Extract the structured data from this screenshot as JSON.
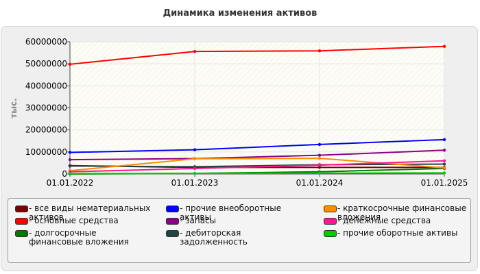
{
  "chart_data": {
    "type": "line",
    "title": "Динамика изменения активов",
    "ylabel": "тыс.",
    "categories": [
      "01.01.2022",
      "01.01.2023",
      "01.01.2024",
      "01.01.2025"
    ],
    "ylim": [
      0,
      60000000
    ],
    "yticks": [
      "0",
      "10000000",
      "20000000",
      "30000000",
      "40000000",
      "50000000",
      "60000000"
    ],
    "grid": true,
    "legend_position": "bottom",
    "series": [
      {
        "name": "- все виды нематериальных активов",
        "color": "#7a0000",
        "values": [
          3800000,
          3000000,
          3000000,
          3000000
        ]
      },
      {
        "name": "- основные средства",
        "color": "#ff0000",
        "values": [
          49800000,
          55600000,
          55900000,
          57900000
        ]
      },
      {
        "name": "- долгосрочные финансовые вложения",
        "color": "#007a00",
        "values": [
          0,
          300000,
          1000000,
          2500000
        ]
      },
      {
        "name": "- прочие внеоборотные активы",
        "color": "#0000ff",
        "values": [
          9800000,
          11000000,
          13400000,
          15600000
        ]
      },
      {
        "name": "- запасы",
        "color": "#8b008b",
        "values": [
          6500000,
          7000000,
          8500000,
          10800000
        ]
      },
      {
        "name": "- дебиторская задолженность",
        "color": "#224444",
        "values": [
          3600000,
          3300000,
          4200000,
          4500000
        ]
      },
      {
        "name": "- краткосрочные финансовые вложения",
        "color": "#ff8c00",
        "values": [
          1500000,
          6900000,
          7100000,
          2800000
        ]
      },
      {
        "name": "- денежные средства",
        "color": "#ff1493",
        "values": [
          1000000,
          2500000,
          4000000,
          6000000
        ]
      },
      {
        "name": "- прочие оборотные активы",
        "color": "#00cc00",
        "values": [
          200000,
          300000,
          400000,
          500000
        ]
      }
    ]
  }
}
